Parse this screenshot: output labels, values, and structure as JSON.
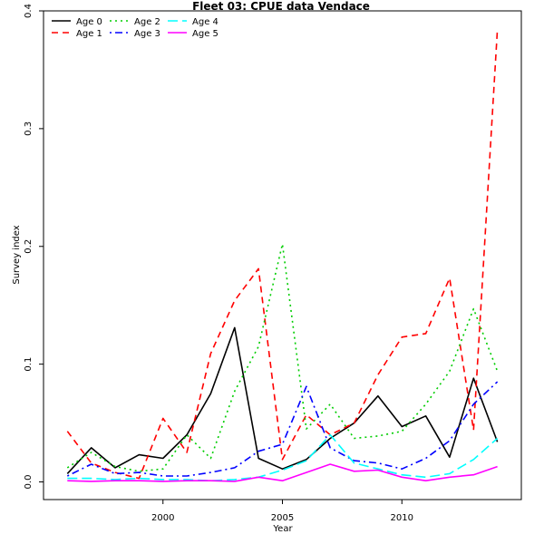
{
  "chart_data": {
    "type": "line",
    "title": "Fleet 03:  CPUE data Vendace",
    "xlabel": "Year",
    "ylabel": "Survey index",
    "xlim": [
      1995,
      2015
    ],
    "ylim": [
      -0.015,
      0.4
    ],
    "x_ticks": [
      2000,
      2005,
      2010
    ],
    "x_tick_labels": [
      "2000",
      "2005",
      "2010"
    ],
    "y_ticks": [
      0.0,
      0.1,
      0.2,
      0.3,
      0.4
    ],
    "y_tick_labels": [
      "0.0",
      "0.1",
      "0.2",
      "0.3",
      "0.4"
    ],
    "grid": false,
    "legend_position": "top-left",
    "x": [
      1996,
      1997,
      1998,
      1999,
      2000,
      2001,
      2002,
      2003,
      2004,
      2005,
      2006,
      2007,
      2008,
      2009,
      2010,
      2011,
      2012,
      2013,
      2014
    ],
    "series": [
      {
        "name": "Age 0",
        "color": "#000000",
        "dash": "solid",
        "values": [
          0.007,
          0.029,
          0.012,
          0.023,
          0.02,
          0.04,
          0.075,
          0.131,
          0.02,
          0.011,
          0.019,
          0.037,
          0.05,
          0.073,
          0.047,
          0.056,
          0.021,
          0.088,
          0.034
        ]
      },
      {
        "name": "Age 1",
        "color": "#ff0000",
        "dash": "dashed",
        "values": [
          0.043,
          0.016,
          0.008,
          0.003,
          0.054,
          0.025,
          0.109,
          0.154,
          0.181,
          0.019,
          0.057,
          0.04,
          0.05,
          0.091,
          0.123,
          0.126,
          0.173,
          0.044,
          0.384
        ]
      },
      {
        "name": "Age 2",
        "color": "#00cd00",
        "dash": "dotted",
        "values": [
          0.012,
          0.025,
          0.013,
          0.009,
          0.011,
          0.04,
          0.02,
          0.077,
          0.115,
          0.202,
          0.045,
          0.066,
          0.037,
          0.039,
          0.043,
          0.066,
          0.094,
          0.147,
          0.094
        ]
      },
      {
        "name": "Age 3",
        "color": "#0000ff",
        "dash": "dotdash",
        "values": [
          0.005,
          0.015,
          0.007,
          0.008,
          0.005,
          0.005,
          0.008,
          0.012,
          0.026,
          0.032,
          0.081,
          0.029,
          0.018,
          0.016,
          0.011,
          0.02,
          0.035,
          0.066,
          0.085
        ]
      },
      {
        "name": "Age 4",
        "color": "#00ffff",
        "dash": "longdash",
        "values": [
          0.003,
          0.003,
          0.002,
          0.003,
          0.002,
          0.002,
          0.001,
          0.002,
          0.004,
          0.01,
          0.018,
          0.04,
          0.016,
          0.011,
          0.006,
          0.004,
          0.007,
          0.019,
          0.037
        ]
      },
      {
        "name": "Age 5",
        "color": "#ff00ff",
        "dash": "solid",
        "values": [
          0.001,
          0.0005,
          0.001,
          0.001,
          0.0005,
          0.001,
          0.001,
          0.0005,
          0.004,
          0.001,
          0.008,
          0.015,
          0.009,
          0.01,
          0.004,
          0.001,
          0.004,
          0.006,
          0.013
        ]
      }
    ]
  }
}
